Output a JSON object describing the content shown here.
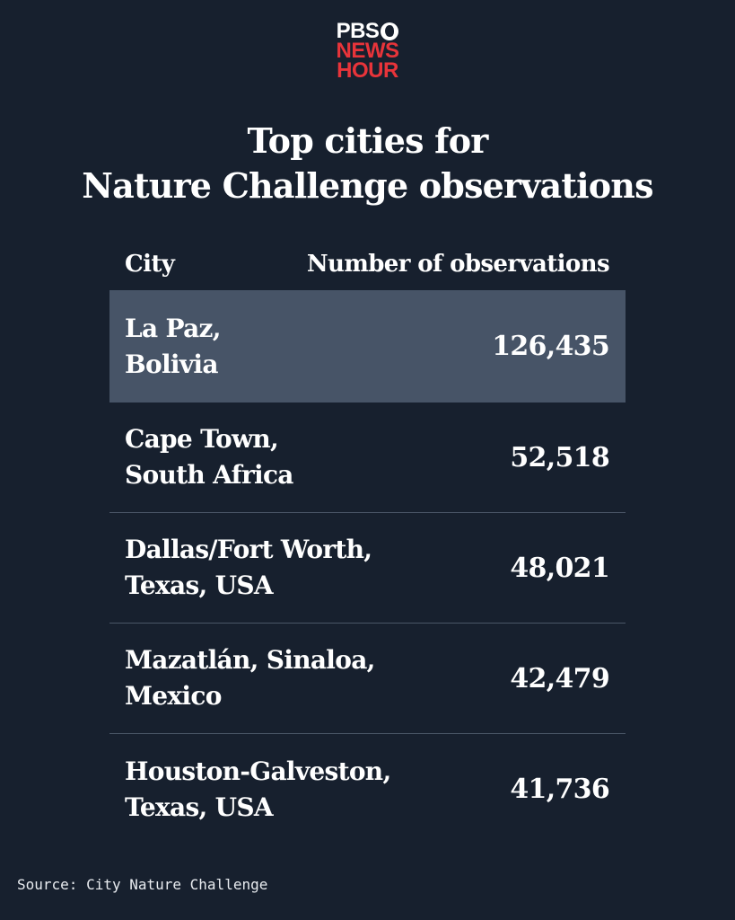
{
  "logo": {
    "line1": "PBS",
    "line2": "NEWS",
    "line3": "HOUR"
  },
  "title_line1": "Top cities for",
  "title_line2": "Nature Challenge observations",
  "chart_data": {
    "type": "table",
    "title": "Top cities for Nature Challenge observations",
    "columns": [
      "City",
      "Number of observations"
    ],
    "rows": [
      {
        "city_line1": "La Paz,",
        "city_line2": "Bolivia",
        "value": 126435,
        "value_label": "126,435",
        "highlight": true
      },
      {
        "city_line1": "Cape Town,",
        "city_line2": "South Africa",
        "value": 52518,
        "value_label": "52,518",
        "highlight": false
      },
      {
        "city_line1": "Dallas/Fort Worth,",
        "city_line2": "Texas, USA",
        "value": 48021,
        "value_label": "48,021",
        "highlight": false
      },
      {
        "city_line1": "Mazatlán, Sinaloa,",
        "city_line2": "Mexico",
        "value": 42479,
        "value_label": "42,479",
        "highlight": false
      },
      {
        "city_line1": "Houston-Galveston,",
        "city_line2": "Texas, USA",
        "value": 41736,
        "value_label": "41,736",
        "highlight": false
      }
    ],
    "highlight_color": "#475467"
  },
  "source": "Source: City Nature Challenge",
  "colors": {
    "background": "#17202e",
    "brand_red": "#e8343a",
    "text": "#ffffff"
  }
}
